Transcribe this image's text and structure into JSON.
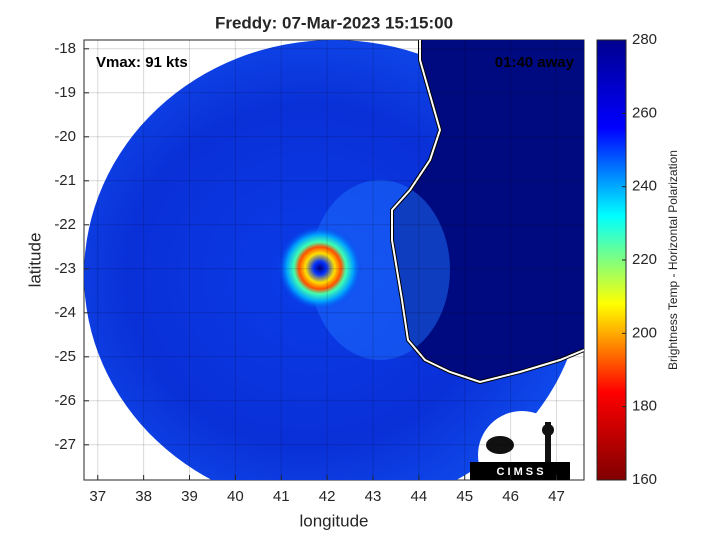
{
  "chart_data": {
    "type": "map",
    "title": "Freddy: 07-Mar-2023 15:15:00",
    "xlabel": "longitude",
    "ylabel": "latitude",
    "xlim": [
      36.7,
      47.6
    ],
    "xticks": [
      37,
      38,
      39,
      40,
      41,
      42,
      43,
      44,
      45,
      46,
      47
    ],
    "ylim": [
      -27.8,
      -17.8
    ],
    "yticks": [
      -18,
      -19,
      -20,
      -21,
      -22,
      -23,
      -24,
      -25,
      -26,
      -27
    ],
    "grid": true,
    "annotations": [
      "Vmax: 91 kts",
      "01:40 away"
    ],
    "logo": "C I M S S",
    "colorbar": {
      "label": "Brightness Temp - Horizontal Polarization",
      "lim": [
        160,
        280
      ],
      "ticks": [
        160,
        180,
        200,
        220,
        240,
        260,
        280
      ],
      "colors": [
        "#800000",
        "#ff0000",
        "#ffff00",
        "#00ffff",
        "#0000ff",
        "#00008f"
      ]
    }
  }
}
